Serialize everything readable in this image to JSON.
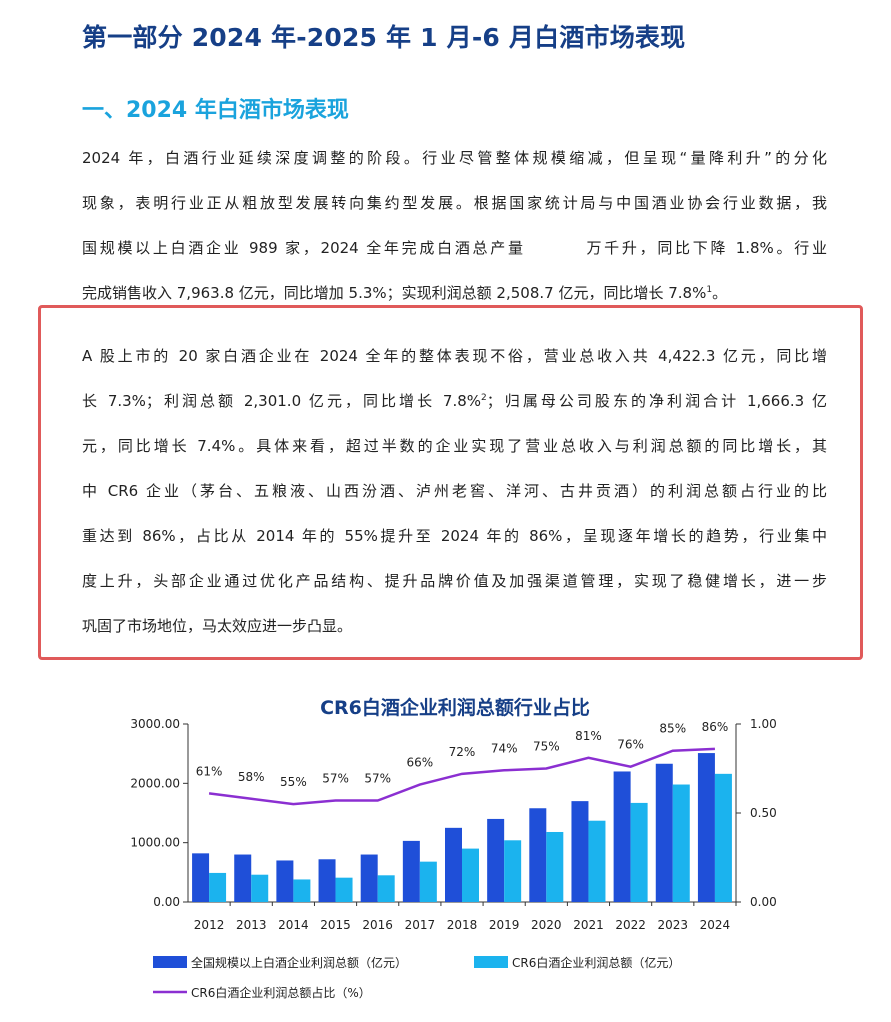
{
  "heading1": "第一部分  2024 年-2025 年 1 月-6 月白酒市场表现",
  "heading2": "一、2024 年白酒市场表现",
  "para1": {
    "lines": [
      "2024 年，白酒行业延续深度调整的阶段。行业尽管整体规模缩减，但呈现“量降利升”的分化",
      "现象，表明行业正从粗放型发展转向集约型发展。根据国家统计局与中国酒业协会行业数据，我"
    ],
    "line3_a": "国规模以上白酒企业 989 家，2024 全年完成白酒总产量",
    "line3_b": "万千升，同比下降 1.8%。行业",
    "line4": "完成销售收入 7,963.8 亿元，同比增加 5.3%；实现利润总额 2,508.7 亿元，同比增长 7.8%",
    "line4_sup": "1",
    "line4_end": "。"
  },
  "para2": {
    "line1": "A 股上市的 20 家白酒企业在 2024 全年的整体表现不俗，营业总收入共 4,422.3 亿元，同比增",
    "line2_a": "长 7.3%；利润总额 2,301.0 亿元，同比增长 7.8%",
    "line2_sup": "2",
    "line2_b": "；归属母公司股东的净利润合计 1,666.3 亿",
    "lines_rest": [
      "元，同比增长 7.4%。具体来看，超过半数的企业实现了营业总收入与利润总额的同比增长，其",
      "中 CR6 企业（茅台、五粮液、山西汾酒、泸州老窖、洋河、古井贡酒）的利润总额占行业的比",
      "重达到 86%，占比从 2014 年的 55%提升至 2024 年的 86%，呈现逐年增长的趋势，行业集中",
      "度上升，头部企业通过优化产品结构、提升品牌价值及加强渠道管理，实现了稳健增长，进一步",
      "巩固了市场地位，马太效应进一步凸显。"
    ]
  },
  "chart_data": {
    "type": "bar",
    "title": "CR6白酒企业利润总额行业占比",
    "categories": [
      "2012",
      "2013",
      "2014",
      "2015",
      "2016",
      "2017",
      "2018",
      "2019",
      "2020",
      "2021",
      "2022",
      "2023",
      "2024"
    ],
    "series": [
      {
        "name": "全国规模以上白酒企业利润总额（亿元）",
        "type": "bar",
        "axis": "left",
        "color": "#1f4fd8",
        "values": [
          820,
          800,
          700,
          720,
          800,
          1030,
          1250,
          1400,
          1580,
          1700,
          2200,
          2330,
          2510
        ]
      },
      {
        "name": "CR6白酒企业利润总额（亿元）",
        "type": "bar",
        "axis": "left",
        "color": "#1bb3ee",
        "values": [
          490,
          460,
          380,
          410,
          450,
          680,
          900,
          1040,
          1180,
          1370,
          1670,
          1980,
          2160
        ]
      },
      {
        "name": "CR6白酒企业利润总额占比（%）",
        "type": "line",
        "axis": "right",
        "color": "#8b2fd1",
        "values": [
          0.61,
          0.58,
          0.55,
          0.57,
          0.57,
          0.66,
          0.72,
          0.74,
          0.75,
          0.81,
          0.76,
          0.85,
          0.86
        ],
        "labels": [
          "61%",
          "58%",
          "55%",
          "57%",
          "57%",
          "66%",
          "72%",
          "74%",
          "75%",
          "81%",
          "76%",
          "85%",
          "86%"
        ]
      }
    ],
    "y_left": {
      "min": 0,
      "max": 3000,
      "ticks": [
        "0.00",
        "1000.00",
        "2000.00",
        "3000.00"
      ],
      "tick_values": [
        0,
        1000,
        2000,
        3000
      ]
    },
    "y_right": {
      "min": 0,
      "max": 1,
      "ticks": [
        "0.00",
        "0.50",
        "1.00"
      ],
      "tick_values": [
        0,
        0.5,
        1
      ]
    },
    "grid": false,
    "legend_position": "bottom"
  }
}
